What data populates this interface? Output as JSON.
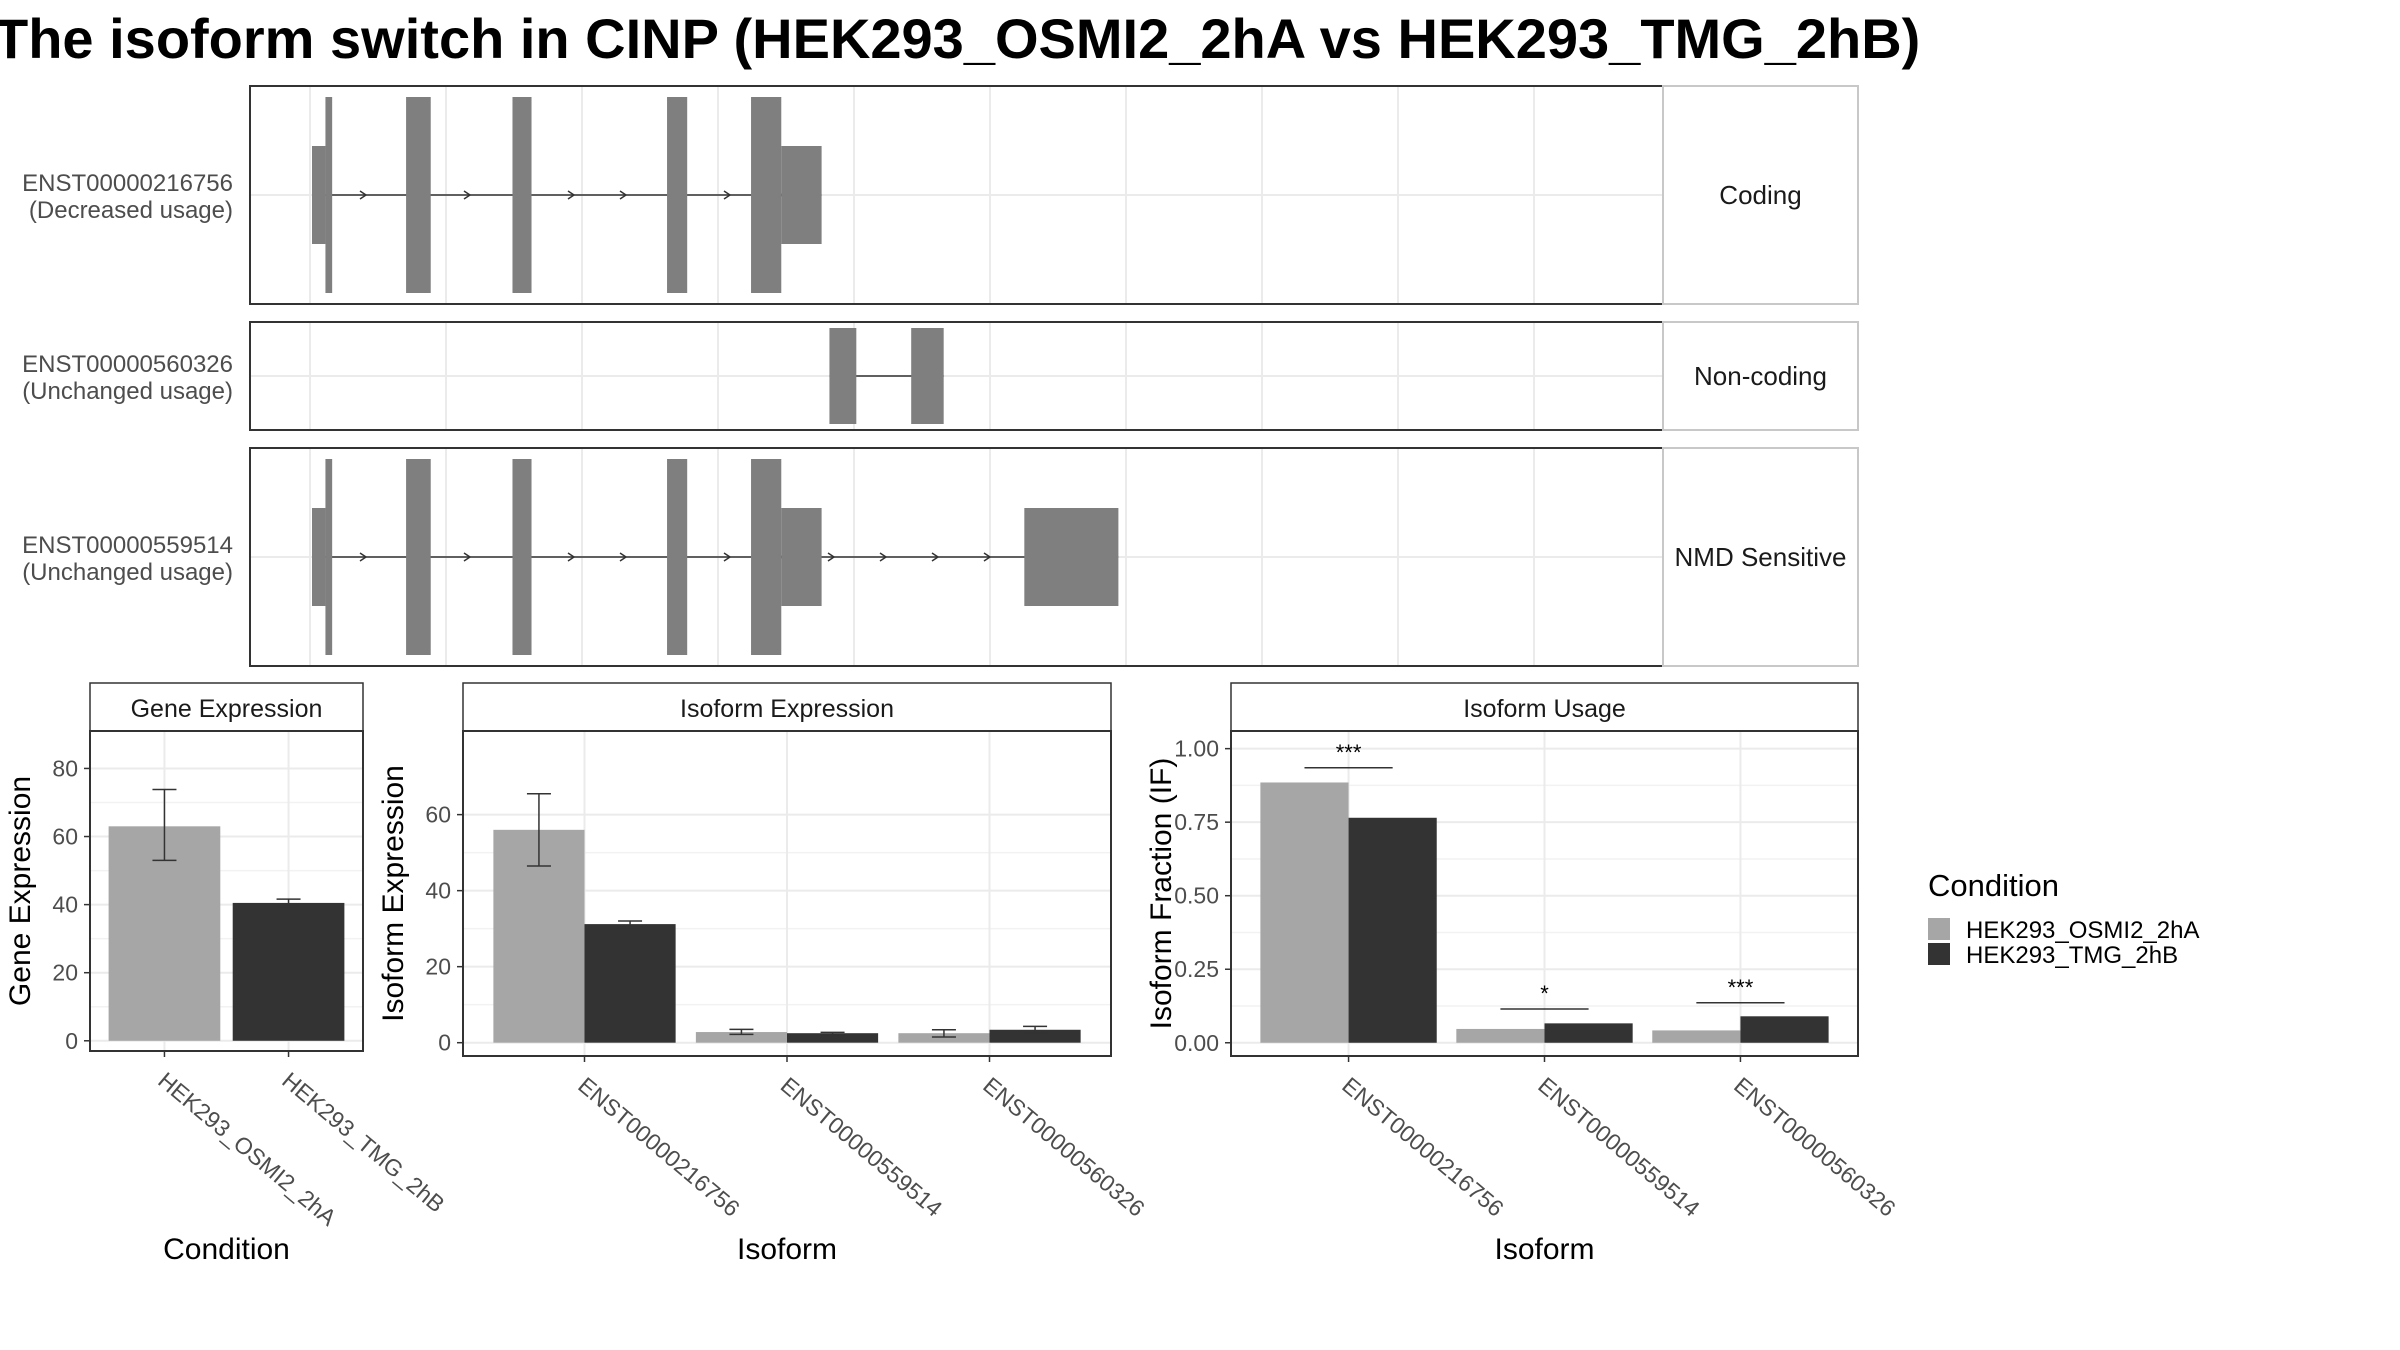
{
  "title": "The isoform switch in CINP (HEK293_OSMI2_2hA vs HEK293_TMG_2hB)",
  "colors": {
    "exon": "#7f7f7f",
    "condition_a": "#a6a6a6",
    "condition_b": "#333333",
    "grid": "#ebebeb",
    "panel_border": "#333333",
    "strip_border": "#c8c8c8"
  },
  "isoform_tracks": [
    {
      "id": "ENST00000216756",
      "usage": "(Decreased usage)",
      "category": "Coding",
      "exons": [
        [
          0,
          1.2,
          "nc"
        ],
        [
          1.2,
          1.8,
          "cds"
        ],
        [
          8.4,
          10.6,
          "cds"
        ],
        [
          17.9,
          19.6,
          "cds"
        ],
        [
          31.7,
          33.5,
          "cds"
        ],
        [
          39.2,
          41.9,
          "cds"
        ],
        [
          41.9,
          45.5,
          "nc"
        ]
      ]
    },
    {
      "id": "ENST00000560326",
      "usage": "(Unchanged usage)",
      "category": "Non-coding",
      "exons": [
        [
          46.2,
          48.6,
          "exon"
        ],
        [
          53.5,
          56.4,
          "exon"
        ]
      ]
    },
    {
      "id": "ENST00000559514",
      "usage": "(Unchanged usage)",
      "category": "NMD Sensitive",
      "exons": [
        [
          0,
          1.2,
          "nc"
        ],
        [
          1.2,
          1.8,
          "cds"
        ],
        [
          8.4,
          10.6,
          "cds"
        ],
        [
          17.9,
          19.6,
          "cds"
        ],
        [
          31.7,
          33.5,
          "cds"
        ],
        [
          39.2,
          41.9,
          "cds"
        ],
        [
          41.9,
          45.5,
          "nc"
        ],
        [
          63.6,
          72.0,
          "nc"
        ]
      ]
    }
  ],
  "chart_data": [
    {
      "type": "bar",
      "panel": "Gene Expression",
      "xlabel": "Condition",
      "ylabel": "Gene Expression",
      "ylim": [
        -3,
        91
      ],
      "yticks": [
        0,
        20,
        40,
        60,
        80
      ],
      "ytick_labels": [
        "0",
        "20",
        "40",
        "60",
        "80"
      ],
      "categories": [
        "HEK293_OSMI2_2hA",
        "HEK293_TMG_2hB"
      ],
      "values": [
        63.0,
        40.5
      ],
      "error": [
        [
          53.0,
          73.8
        ],
        [
          39.5,
          41.6
        ]
      ],
      "grid": true
    },
    {
      "type": "bar",
      "panel": "Isoform Expression",
      "xlabel": "Isoform",
      "ylabel": "Isoform Expression",
      "ylim": [
        -3.5,
        82
      ],
      "yticks": [
        0,
        20,
        40,
        60
      ],
      "ytick_labels": [
        "0",
        "20",
        "40",
        "60"
      ],
      "categories": [
        "ENST00000216756",
        "ENST00000559514",
        "ENST00000560326"
      ],
      "series": [
        {
          "name": "HEK293_OSMI2_2hA",
          "values": [
            56.0,
            2.8,
            2.5
          ],
          "error": [
            [
              46.5,
              65.5
            ],
            [
              2.2,
              3.5
            ],
            [
              1.5,
              3.4
            ]
          ]
        },
        {
          "name": "HEK293_TMG_2hB",
          "values": [
            31.2,
            2.5,
            3.4
          ],
          "error": [
            [
              30.3,
              32.0
            ],
            [
              2.2,
              2.7
            ],
            [
              2.6,
              4.3
            ]
          ]
        }
      ],
      "grid": true
    },
    {
      "type": "bar",
      "panel": "Isoform Usage",
      "xlabel": "Isoform",
      "ylabel": "Isoform Fraction (IF)",
      "ylim": [
        -0.045,
        1.06
      ],
      "yticks": [
        0,
        0.25,
        0.5,
        0.75,
        1.0
      ],
      "ytick_labels": [
        "0.00",
        "0.25",
        "0.50",
        "0.75",
        "1.00"
      ],
      "categories": [
        "ENST00000216756",
        "ENST00000559514",
        "ENST00000560326"
      ],
      "series": [
        {
          "name": "HEK293_OSMI2_2hA",
          "values": [
            0.885,
            0.047,
            0.042
          ]
        },
        {
          "name": "HEK293_TMG_2hB",
          "values": [
            0.765,
            0.066,
            0.09
          ]
        }
      ],
      "significance": [
        {
          "category": "ENST00000216756",
          "label": "***",
          "level": 0.935
        },
        {
          "category": "ENST00000559514",
          "label": "*",
          "level": 0.115
        },
        {
          "category": "ENST00000560326",
          "label": "***",
          "level": 0.136
        }
      ],
      "grid": true
    }
  ],
  "legend": {
    "title": "Condition",
    "items": [
      "HEK293_OSMI2_2hA",
      "HEK293_TMG_2hB"
    ]
  }
}
